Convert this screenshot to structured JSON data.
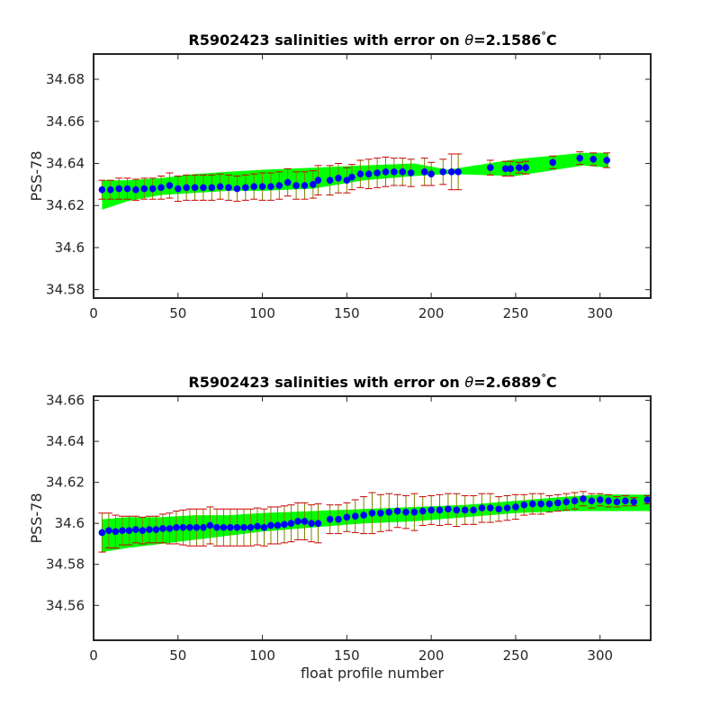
{
  "chart_data": [
    {
      "type": "scatter",
      "title_prefix": "R5902423 salinities with error on ",
      "title_symbol": "θ",
      "title_value": "=2.1586",
      "title_deg": "°",
      "title_unit": "C",
      "xlabel": "",
      "ylabel": "PSS-78",
      "xlim": [
        0,
        330
      ],
      "ylim": [
        34.576,
        34.692
      ],
      "xticks": [
        "0",
        "50",
        "100",
        "150",
        "200",
        "250",
        "300"
      ],
      "yticks": [
        "34.58",
        "34.6",
        "34.62",
        "34.64",
        "34.66",
        "34.68"
      ],
      "colors": {
        "band": "#00ff00",
        "error": "#cc0000",
        "point": "#0000ff",
        "axis": "#262626"
      },
      "band": {
        "x": [
          5,
          20,
          40,
          60,
          80,
          100,
          130,
          160,
          190,
          210,
          250,
          290,
          305
        ],
        "lower": [
          34.618,
          34.622,
          34.625,
          34.626,
          34.627,
          34.627,
          34.628,
          34.632,
          34.634,
          34.635,
          34.634,
          34.639,
          34.638
        ],
        "upper": [
          34.632,
          34.632,
          34.633,
          34.635,
          34.636,
          34.637,
          34.638,
          34.639,
          34.64,
          34.637,
          34.642,
          34.645,
          34.645
        ]
      },
      "points": {
        "x": [
          5,
          10,
          15,
          20,
          25,
          30,
          35,
          40,
          45,
          50,
          55,
          60,
          65,
          70,
          75,
          80,
          85,
          90,
          95,
          100,
          105,
          110,
          115,
          120,
          125,
          130,
          133,
          140,
          145,
          150,
          153,
          158,
          163,
          168,
          173,
          178,
          183,
          188,
          196,
          200,
          207,
          212,
          216,
          235,
          244,
          247,
          252,
          256,
          272,
          288,
          296,
          304
        ],
        "y": [
          34.6275,
          34.6275,
          34.628,
          34.628,
          34.6275,
          34.628,
          34.628,
          34.6285,
          34.6295,
          34.628,
          34.6285,
          34.6285,
          34.6285,
          34.6285,
          34.629,
          34.6285,
          34.628,
          34.6285,
          34.629,
          34.629,
          34.629,
          34.6295,
          34.631,
          34.6295,
          34.6295,
          34.63,
          34.632,
          34.632,
          34.633,
          34.632,
          34.6335,
          34.635,
          34.635,
          34.6355,
          34.636,
          34.636,
          34.636,
          34.6355,
          34.636,
          34.635,
          34.636,
          34.636,
          34.636,
          34.638,
          34.6375,
          34.6375,
          34.638,
          34.638,
          34.6405,
          34.6425,
          34.642,
          34.6415
        ],
        "err": [
          0.0045,
          0.0045,
          0.005,
          0.005,
          0.005,
          0.005,
          0.005,
          0.0055,
          0.006,
          0.006,
          0.006,
          0.006,
          0.006,
          0.006,
          0.006,
          0.006,
          0.006,
          0.006,
          0.006,
          0.0065,
          0.0065,
          0.0065,
          0.0065,
          0.0065,
          0.0065,
          0.0065,
          0.007,
          0.007,
          0.007,
          0.006,
          0.006,
          0.0065,
          0.007,
          0.007,
          0.007,
          0.0065,
          0.0065,
          0.0065,
          0.0065,
          0.0055,
          0.006,
          0.0085,
          0.0085,
          0.0035,
          0.0035,
          0.0035,
          0.0025,
          0.003,
          0.003,
          0.003,
          0.003,
          0.0035
        ]
      }
    },
    {
      "type": "scatter",
      "title_prefix": "R5902423 salinities with error on ",
      "title_symbol": "θ",
      "title_value": "=2.6889",
      "title_deg": "°",
      "title_unit": "C",
      "xlabel": "float profile number",
      "ylabel": "PSS-78",
      "xlim": [
        0,
        330
      ],
      "ylim": [
        34.543,
        34.662
      ],
      "xticks": [
        "0",
        "50",
        "100",
        "150",
        "200",
        "250",
        "300"
      ],
      "yticks": [
        "34.56",
        "34.58",
        "34.6",
        "34.62",
        "34.64",
        "34.66"
      ],
      "colors": {
        "band": "#00ff00",
        "error": "#cc0000",
        "point": "#0000ff",
        "axis": "#262626"
      },
      "band": {
        "x": [
          5,
          20,
          40,
          60,
          80,
          100,
          130,
          160,
          190,
          220,
          250,
          280,
          300,
          330
        ],
        "lower": [
          34.586,
          34.588,
          34.59,
          34.592,
          34.594,
          34.596,
          34.598,
          34.6,
          34.601,
          34.603,
          34.605,
          34.606,
          34.606,
          34.606
        ],
        "upper": [
          34.602,
          34.603,
          34.603,
          34.604,
          34.604,
          34.605,
          34.606,
          34.607,
          34.608,
          34.609,
          34.611,
          34.613,
          34.614,
          34.614
        ]
      },
      "points": {
        "x": [
          5,
          9,
          13,
          17,
          21,
          25,
          29,
          33,
          37,
          41,
          45,
          49,
          53,
          57,
          61,
          65,
          69,
          73,
          77,
          81,
          85,
          89,
          93,
          97,
          101,
          105,
          109,
          113,
          117,
          121,
          125,
          129,
          133,
          140,
          145,
          150,
          155,
          160,
          165,
          170,
          175,
          180,
          185,
          190,
          195,
          200,
          205,
          210,
          215,
          220,
          225,
          230,
          235,
          240,
          245,
          250,
          255,
          260,
          265,
          270,
          275,
          280,
          285,
          290,
          295,
          300,
          305,
          310,
          315,
          320,
          328
        ],
        "y": [
          34.5955,
          34.5965,
          34.596,
          34.5965,
          34.5965,
          34.597,
          34.5965,
          34.597,
          34.597,
          34.5975,
          34.5975,
          34.598,
          34.598,
          34.598,
          34.598,
          34.598,
          34.599,
          34.598,
          34.598,
          34.598,
          34.598,
          34.598,
          34.598,
          34.5985,
          34.598,
          34.599,
          34.599,
          34.5995,
          34.6,
          34.601,
          34.601,
          34.6,
          34.6,
          34.602,
          34.602,
          34.603,
          34.6035,
          34.604,
          34.605,
          34.605,
          34.6055,
          34.606,
          34.6055,
          34.6055,
          34.606,
          34.6065,
          34.6065,
          34.607,
          34.6065,
          34.6065,
          34.6065,
          34.6075,
          34.6075,
          34.607,
          34.6075,
          34.608,
          34.609,
          34.6095,
          34.6095,
          34.6095,
          34.61,
          34.6105,
          34.611,
          34.612,
          34.611,
          34.6115,
          34.611,
          34.6105,
          34.611,
          34.6105,
          34.6115
        ],
        "err": [
          0.0095,
          0.0085,
          0.008,
          0.007,
          0.007,
          0.0065,
          0.0065,
          0.0065,
          0.0065,
          0.007,
          0.0075,
          0.008,
          0.0085,
          0.009,
          0.009,
          0.009,
          0.009,
          0.009,
          0.009,
          0.009,
          0.009,
          0.009,
          0.009,
          0.009,
          0.009,
          0.009,
          0.009,
          0.009,
          0.009,
          0.009,
          0.009,
          0.009,
          0.0095,
          0.007,
          0.007,
          0.007,
          0.008,
          0.009,
          0.01,
          0.009,
          0.009,
          0.008,
          0.008,
          0.009,
          0.007,
          0.007,
          0.0075,
          0.0075,
          0.008,
          0.007,
          0.007,
          0.007,
          0.007,
          0.006,
          0.006,
          0.006,
          0.005,
          0.005,
          0.005,
          0.004,
          0.004,
          0.004,
          0.004,
          0.0035,
          0.0035,
          0.003,
          0.003,
          0.0025,
          0.0025,
          0.002,
          0.002
        ]
      }
    }
  ]
}
